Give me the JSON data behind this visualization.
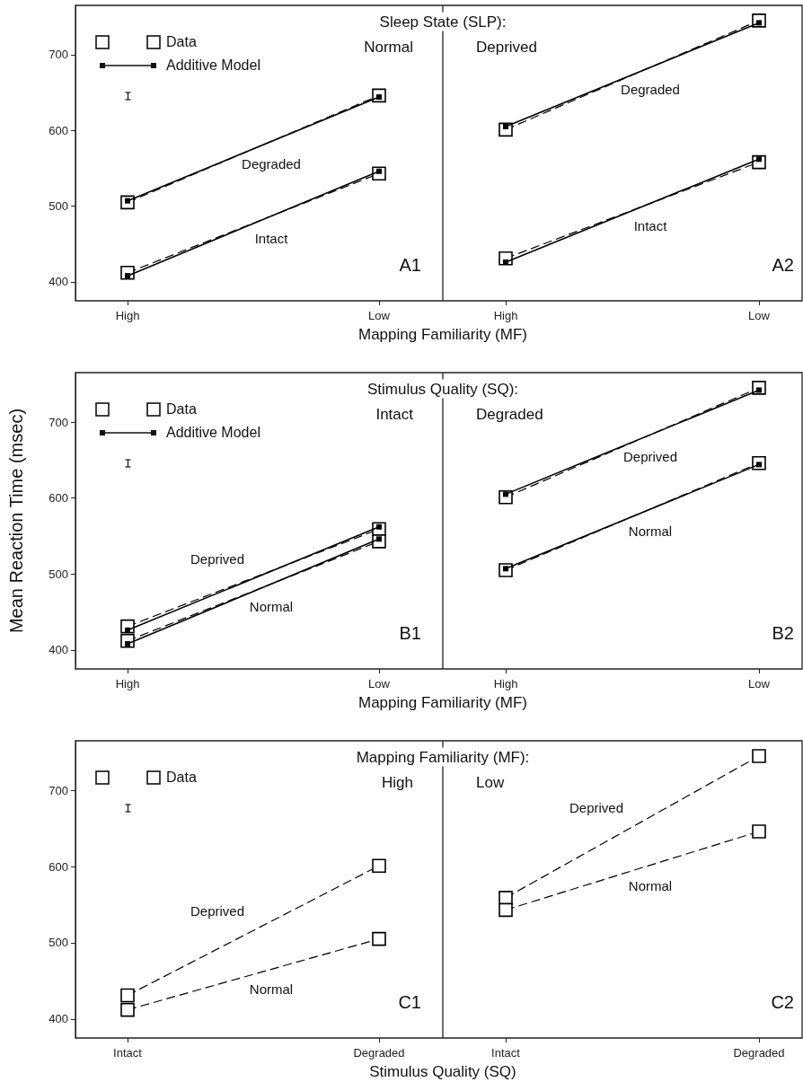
{
  "chart_data": [
    {
      "type": "line",
      "title": "Sleep State (SLP):",
      "subtitle": "Normal",
      "xlabel": "Mapping Familiarity (MF)",
      "categories": [
        "High",
        "Low"
      ],
      "ylim": [
        375,
        765
      ],
      "yticks": [
        400,
        500,
        600,
        700
      ],
      "annotations": [
        "A1",
        "Data",
        "Additive Model"
      ],
      "series": [
        {
          "color": "#000000",
          "values": [
            505,
            646
          ],
          "marker": "square",
          "line_style": "dashed"
        },
        {
          "color": "#000000",
          "values": [
            412,
            543
          ],
          "marker": "square",
          "line_style": "dashed"
        },
        {
          "name": "Degraded",
          "color": "#000000",
          "values": [
            507,
            644
          ],
          "marker": "square",
          "line_style": "solid"
        },
        {
          "name": "Intact",
          "color": "#000000",
          "values": [
            408,
            546
          ],
          "marker": "square",
          "line_style": "solid"
        }
      ]
    },
    {
      "type": "line",
      "subtitle": "Deprived",
      "categories": [
        "High",
        "Low"
      ],
      "ylim": [
        375,
        765
      ],
      "yticks": [
        400,
        500,
        600,
        700
      ],
      "tick_labels": "x",
      "annotations": [
        "A2"
      ],
      "series": [
        {
          "color": "#000000",
          "values": [
            601,
            745
          ],
          "marker": "square",
          "line_style": "dashed"
        },
        {
          "color": "#000000",
          "values": [
            431,
            558
          ],
          "marker": "square",
          "line_style": "dashed"
        },
        {
          "name": "Degraded",
          "color": "#000000",
          "values": [
            605,
            742
          ],
          "marker": "square",
          "line_style": "solid"
        },
        {
          "name": "Intact",
          "color": "#000000",
          "values": [
            426,
            562
          ],
          "marker": "square",
          "line_style": "solid"
        }
      ]
    },
    {
      "type": "line",
      "title": "Stimulus Quality (SQ):",
      "subtitle": "Intact",
      "xlabel": "Mapping Familiarity (MF)",
      "ylabel": "Mean Reaction Time (msec)",
      "categories": [
        "High",
        "Low"
      ],
      "ylim": [
        375,
        765
      ],
      "yticks": [
        400,
        500,
        600,
        700
      ],
      "annotations": [
        "B1",
        "Data",
        "Additive Model"
      ],
      "series": [
        {
          "color": "#000000",
          "values": [
            431,
            559
          ],
          "marker": "square",
          "line_style": "dashed"
        },
        {
          "color": "#000000",
          "values": [
            412,
            543
          ],
          "marker": "square",
          "line_style": "dashed"
        },
        {
          "name": "Deprived",
          "color": "#000000",
          "values": [
            426,
            562
          ],
          "marker": "square",
          "line_style": "solid"
        },
        {
          "name": "Normal",
          "color": "#000000",
          "values": [
            408,
            546
          ],
          "marker": "square",
          "line_style": "solid"
        }
      ]
    },
    {
      "type": "line",
      "subtitle": "Degraded",
      "categories": [
        "High",
        "Low"
      ],
      "ylim": [
        375,
        765
      ],
      "yticks": [
        400,
        500,
        600,
        700
      ],
      "tick_labels": "x",
      "annotations": [
        "B2"
      ],
      "series": [
        {
          "color": "#000000",
          "values": [
            601,
            745
          ],
          "marker": "square",
          "line_style": "dashed"
        },
        {
          "color": "#000000",
          "values": [
            505,
            646
          ],
          "marker": "square",
          "line_style": "dashed"
        },
        {
          "name": "Deprived",
          "color": "#000000",
          "values": [
            605,
            742
          ],
          "marker": "square",
          "line_style": "solid"
        },
        {
          "name": "Normal",
          "color": "#000000",
          "values": [
            507,
            644
          ],
          "marker": "square",
          "line_style": "solid"
        }
      ]
    },
    {
      "type": "line",
      "title": "Mapping Familiarity (MF):",
      "subtitle": "High",
      "xlabel": "Stimulus Quality (SQ)",
      "categories": [
        "Intact",
        "Degraded"
      ],
      "ylim": [
        375,
        765
      ],
      "yticks": [
        400,
        500,
        600,
        700
      ],
      "annotations": [
        "C1",
        "Data"
      ],
      "series": [
        {
          "name": "Deprived",
          "color": "#000000",
          "values": [
            431,
            601
          ],
          "marker": "square",
          "line_style": "dashed"
        },
        {
          "name": "Normal",
          "color": "#000000",
          "values": [
            412,
            505
          ],
          "marker": "square",
          "line_style": "dashed"
        }
      ]
    },
    {
      "type": "line",
      "subtitle": "Low",
      "categories": [
        "Intact",
        "Degraded"
      ],
      "ylim": [
        375,
        765
      ],
      "yticks": [
        400,
        500,
        600,
        700
      ],
      "tick_labels": "x",
      "annotations": [
        "C2"
      ],
      "series": [
        {
          "name": "Deprived",
          "color": "#000000",
          "values": [
            559,
            745
          ],
          "marker": "square",
          "line_style": "dashed"
        },
        {
          "name": "Normal",
          "color": "#000000",
          "values": [
            543,
            646
          ],
          "marker": "square",
          "line_style": "dashed"
        }
      ]
    }
  ]
}
